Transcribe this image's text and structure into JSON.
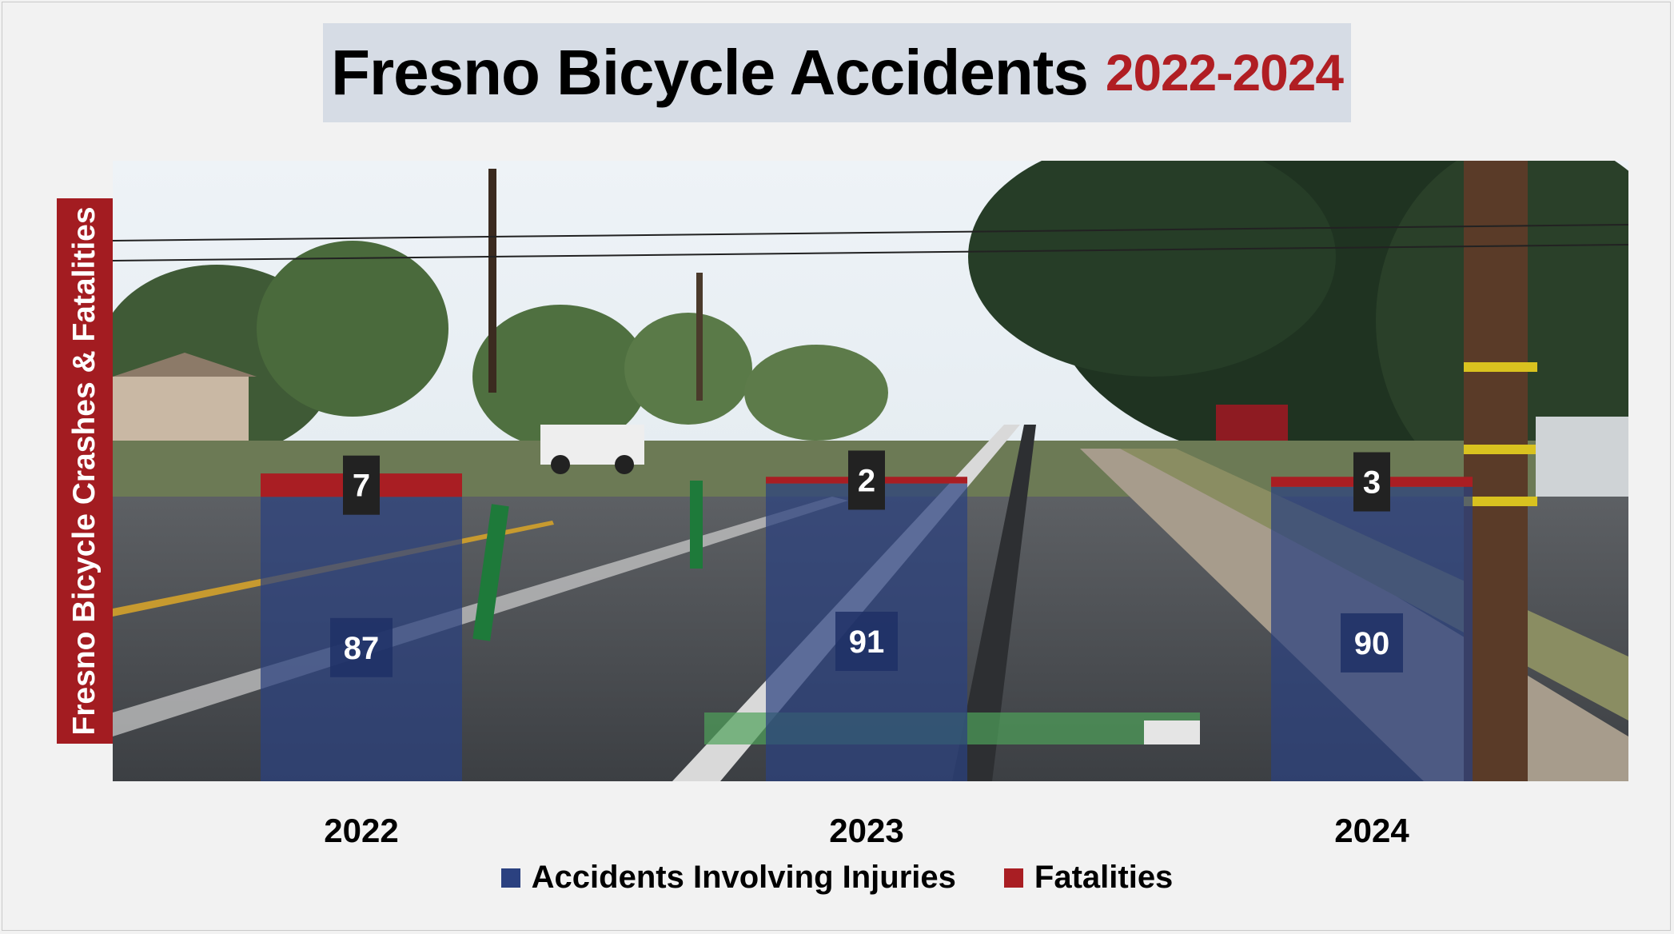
{
  "title": {
    "main": "Fresno Bicycle Accidents",
    "years": "2022-2024"
  },
  "colors": {
    "injuries": "#2b4180",
    "fatalities": "#a91e23",
    "title_accent": "#b01e23",
    "title_bg": "#d6dce5",
    "label_box": "#222222"
  },
  "chart_data": {
    "type": "bar",
    "stacked": true,
    "categories": [
      "2022",
      "2023",
      "2024"
    ],
    "series": [
      {
        "name": "Accidents Involving Injuries",
        "values": [
          87,
          91,
          90
        ]
      },
      {
        "name": "Fatalities",
        "values": [
          7,
          2,
          3
        ]
      }
    ],
    "title": "Fresno Bicycle Accidents 2022-2024",
    "xlabel": "",
    "ylabel": "Fresno Bicycle Crashes & Fatalities",
    "legend": "bottom",
    "grid": false,
    "data_labels": true
  }
}
